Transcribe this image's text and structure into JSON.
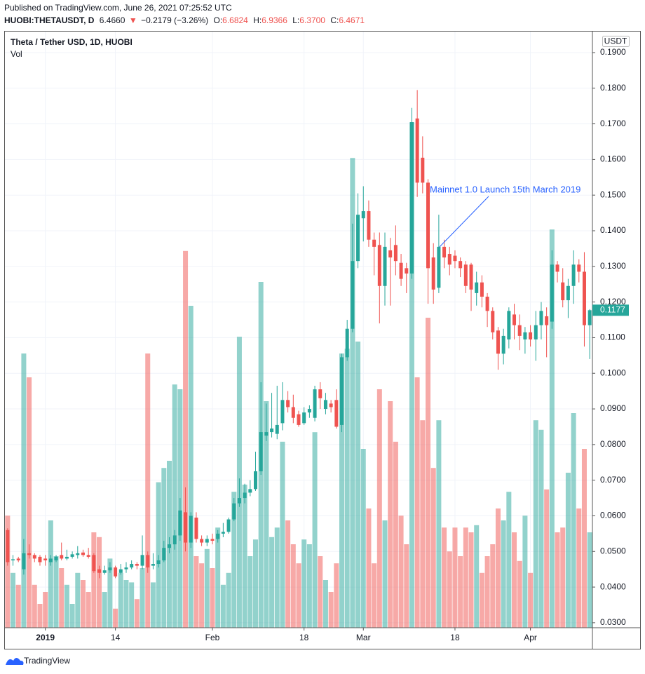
{
  "header": {
    "published": "Published on TradingView.com, June 26, 2021 07:25:52 UTC",
    "symbol": "HUOBI:THETAUSDT, D",
    "price": "6.4660",
    "arrow": "▼",
    "change": "−0.2179 (−3.26%)",
    "ohlc": [
      {
        "label": "O:",
        "value": "6.6824"
      },
      {
        "label": "H:",
        "value": "6.9366"
      },
      {
        "label": "L:",
        "value": "6.3700"
      },
      {
        "label": "C:",
        "value": "6.4671"
      }
    ]
  },
  "footer": {
    "brand": "TradingView"
  },
  "chart_data": {
    "type": "candlestick",
    "title": "Theta / Tether USD, 1D, HUOBI",
    "volume_label": "Vol",
    "y_unit": "USDT",
    "annotation": "Mainnet 1.0 Launch 15th March 2019",
    "up_color": "#26a69a",
    "down_color": "#ef5350",
    "grid": true,
    "xlim": [
      -0.5,
      108.5
    ],
    "xticks": [
      {
        "value": 7,
        "label": "2019"
      },
      {
        "value": 20,
        "label": "14"
      },
      {
        "value": 38,
        "label": "Feb"
      },
      {
        "value": 55,
        "label": "18"
      },
      {
        "value": 66,
        "label": "Mar"
      },
      {
        "value": 83,
        "label": "18"
      },
      {
        "value": 97,
        "label": "Apr"
      }
    ],
    "ylim": [
      0.0286,
      0.1959
    ],
    "yticks": [
      {
        "value": 0.03,
        "label": "0.0300"
      },
      {
        "value": 0.04,
        "label": "0.0400"
      },
      {
        "value": 0.05,
        "label": "0.0500"
      },
      {
        "value": 0.06,
        "label": "0.0600"
      },
      {
        "value": 0.07,
        "label": "0.0700"
      },
      {
        "value": 0.08,
        "label": "0.0800"
      },
      {
        "value": 0.09,
        "label": "0.0900"
      },
      {
        "value": 0.1,
        "label": "0.1000"
      },
      {
        "value": 0.11,
        "label": "0.1100"
      },
      {
        "value": 0.12,
        "label": "0.1200"
      },
      {
        "value": 0.13,
        "label": "0.1300"
      },
      {
        "value": 0.14,
        "label": "0.1400"
      },
      {
        "value": 0.15,
        "label": "0.1500"
      },
      {
        "value": 0.16,
        "label": "0.1600"
      },
      {
        "value": 0.17,
        "label": "0.1700"
      },
      {
        "value": 0.18,
        "label": "0.1800"
      },
      {
        "value": 0.19,
        "label": "0.1900"
      }
    ],
    "vlim": [
      0,
      250
    ],
    "open": [
      0.056,
      0.0475,
      0.048,
      0.045,
      0.0495,
      0.049,
      0.0485,
      0.048,
      0.047,
      0.0475,
      0.049,
      0.048,
      0.0485,
      0.049,
      0.0497,
      0.049,
      0.049,
      0.045,
      0.044,
      0.0447,
      0.0455,
      0.044,
      0.045,
      0.0455,
      0.0465,
      0.046,
      0.049,
      0.046,
      0.0465,
      0.0475,
      0.051,
      0.052,
      0.0545,
      0.061,
      0.0525,
      0.0595,
      0.0535,
      0.0525,
      0.0535,
      0.0535,
      0.055,
      0.0555,
      0.059,
      0.0635,
      0.065,
      0.0665,
      0.0675,
      0.0725,
      0.0825,
      0.0835,
      0.083,
      0.086,
      0.0925,
      0.0905,
      0.0885,
      0.086,
      0.089,
      0.0875,
      0.0955,
      0.09,
      0.0915,
      0.0925,
      0.0855,
      0.1045,
      0.1125,
      0.1315,
      0.1435,
      0.1455,
      0.1375,
      0.136,
      0.1245,
      0.1345,
      0.136,
      0.131,
      0.1295,
      0.128,
      0.1715,
      0.1605,
      0.1535,
      0.1325,
      0.124,
      0.1355,
      0.1335,
      0.133,
      0.1315,
      0.1305,
      0.1305,
      0.1225,
      0.1255,
      0.1215,
      0.1175,
      0.112,
      0.1055,
      0.1095,
      0.1165,
      0.1135,
      0.1095,
      0.1115,
      0.1095,
      0.1135,
      0.116,
      0.1145,
      0.1305,
      0.1255,
      0.1205,
      0.1245,
      0.1305,
      0.1285,
      0.1135
    ],
    "high": [
      0.0565,
      0.049,
      0.0485,
      0.0535,
      0.052,
      0.0495,
      0.049,
      0.049,
      0.049,
      0.049,
      0.0525,
      0.0505,
      0.05,
      0.0515,
      0.0505,
      0.051,
      0.0495,
      0.046,
      0.046,
      0.047,
      0.046,
      0.0465,
      0.047,
      0.0475,
      0.047,
      0.0545,
      0.05,
      0.0495,
      0.049,
      0.053,
      0.054,
      0.056,
      0.065,
      0.068,
      0.061,
      0.061,
      0.0545,
      0.0545,
      0.055,
      0.056,
      0.058,
      0.0595,
      0.065,
      0.0705,
      0.069,
      0.07,
      0.078,
      0.0975,
      0.0915,
      0.0945,
      0.0965,
      0.0975,
      0.095,
      0.094,
      0.0895,
      0.0905,
      0.091,
      0.0965,
      0.0975,
      0.0945,
      0.0925,
      0.0955,
      0.1055,
      0.115,
      0.142,
      0.1505,
      0.1525,
      0.1485,
      0.1395,
      0.1395,
      0.1395,
      0.138,
      0.1415,
      0.1335,
      0.131,
      0.1745,
      0.1795,
      0.1665,
      0.1545,
      0.1365,
      0.1445,
      0.1375,
      0.1355,
      0.1345,
      0.1325,
      0.1315,
      0.131,
      0.1285,
      0.1275,
      0.1225,
      0.1185,
      0.113,
      0.1125,
      0.1185,
      0.1195,
      0.1165,
      0.113,
      0.1135,
      0.1175,
      0.12,
      0.1185,
      0.1345,
      0.1315,
      0.1295,
      0.1265,
      0.1345,
      0.132,
      0.134,
      0.118
    ],
    "low": [
      0.046,
      0.046,
      0.047,
      0.0435,
      0.048,
      0.047,
      0.046,
      0.046,
      0.046,
      0.047,
      0.0475,
      0.0475,
      0.048,
      0.048,
      0.0485,
      0.048,
      0.044,
      0.0425,
      0.0435,
      0.044,
      0.0425,
      0.0435,
      0.044,
      0.045,
      0.045,
      0.045,
      0.044,
      0.045,
      0.0455,
      0.047,
      0.0495,
      0.0505,
      0.053,
      0.05,
      0.051,
      0.0525,
      0.0515,
      0.0515,
      0.052,
      0.0525,
      0.054,
      0.055,
      0.0585,
      0.0625,
      0.0635,
      0.0655,
      0.067,
      0.0715,
      0.081,
      0.082,
      0.0815,
      0.084,
      0.089,
      0.086,
      0.085,
      0.0855,
      0.0875,
      0.0865,
      0.09,
      0.0885,
      0.089,
      0.0845,
      0.0835,
      0.1035,
      0.1115,
      0.1295,
      0.137,
      0.1355,
      0.1275,
      0.114,
      0.119,
      0.119,
      0.1275,
      0.1245,
      0.1225,
      0.1265,
      0.1495,
      0.1505,
      0.1195,
      0.1195,
      0.1225,
      0.1295,
      0.1275,
      0.1295,
      0.127,
      0.1225,
      0.1175,
      0.119,
      0.1185,
      0.113,
      0.1095,
      0.101,
      0.1025,
      0.107,
      0.1095,
      0.1065,
      0.1055,
      0.1075,
      0.1035,
      0.1095,
      0.1045,
      0.1125,
      0.1255,
      0.1185,
      0.1155,
      0.1195,
      0.1255,
      0.1075,
      0.104
    ],
    "close": [
      0.047,
      0.0478,
      0.0475,
      0.0495,
      0.049,
      0.048,
      0.047,
      0.0475,
      0.048,
      0.0485,
      0.048,
      0.0485,
      0.0492,
      0.0495,
      0.049,
      0.0485,
      0.0445,
      0.044,
      0.0447,
      0.0455,
      0.043,
      0.045,
      0.0455,
      0.0465,
      0.046,
      0.049,
      0.0455,
      0.0465,
      0.0475,
      0.051,
      0.052,
      0.0545,
      0.0615,
      0.0525,
      0.06,
      0.0535,
      0.0525,
      0.0535,
      0.053,
      0.055,
      0.0555,
      0.059,
      0.0635,
      0.065,
      0.0665,
      0.0675,
      0.0725,
      0.0835,
      0.0835,
      0.0845,
      0.0855,
      0.0925,
      0.0905,
      0.0875,
      0.0855,
      0.089,
      0.09,
      0.0955,
      0.093,
      0.0925,
      0.0905,
      0.085,
      0.1045,
      0.1125,
      0.1315,
      0.1445,
      0.1455,
      0.1375,
      0.1355,
      0.1245,
      0.1355,
      0.1325,
      0.1315,
      0.1265,
      0.128,
      0.1705,
      0.1535,
      0.1535,
      0.1295,
      0.1235,
      0.1355,
      0.1325,
      0.1305,
      0.1315,
      0.1295,
      0.1245,
      0.1235,
      0.1255,
      0.1215,
      0.1175,
      0.1115,
      0.1055,
      0.1105,
      0.1175,
      0.1135,
      0.1105,
      0.1115,
      0.1095,
      0.1135,
      0.1175,
      0.1135,
      0.1305,
      0.1285,
      0.1205,
      0.1245,
      0.1305,
      0.1285,
      0.1135,
      0.1177
    ],
    "volume": [
      47,
      23,
      18,
      115,
      105,
      18,
      10,
      15,
      45,
      30,
      25,
      18,
      10,
      23,
      20,
      15,
      40,
      38,
      15,
      29,
      8,
      23,
      20,
      19,
      12,
      25,
      115,
      19,
      61,
      67,
      70,
      102,
      100,
      158,
      135,
      30,
      27,
      33,
      25,
      42,
      18,
      23,
      57,
      122,
      60,
      30,
      37,
      145,
      95,
      38,
      42,
      78,
      45,
      35,
      27,
      37,
      35,
      82,
      30,
      20,
      15,
      27,
      115,
      117,
      197,
      120,
      75,
      50,
      27,
      100,
      45,
      95,
      78,
      47,
      35,
      212,
      105,
      87,
      130,
      67,
      87,
      42,
      32,
      42,
      30,
      42,
      40,
      43,
      23,
      30,
      35,
      50,
      45,
      57,
      40,
      28,
      47,
      23,
      87,
      83,
      58,
      167,
      40,
      42,
      65,
      90,
      50,
      75,
      40
    ]
  }
}
